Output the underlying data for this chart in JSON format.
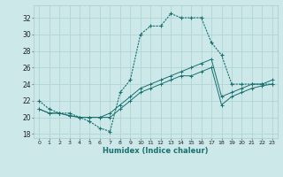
{
  "xlabel": "Humidex (Indice chaleur)",
  "background_color": "#cce8e8",
  "grid_color": "#b0d4d4",
  "line_color": "#1a7070",
  "xlim": [
    -0.5,
    23.5
  ],
  "ylim": [
    17.5,
    33.5
  ],
  "xticks": [
    0,
    1,
    2,
    3,
    4,
    5,
    6,
    7,
    8,
    9,
    10,
    11,
    12,
    13,
    14,
    15,
    16,
    17,
    18,
    19,
    20,
    21,
    22,
    23
  ],
  "yticks": [
    18,
    20,
    22,
    24,
    26,
    28,
    30,
    32
  ],
  "series1_x": [
    0,
    1,
    2,
    3,
    4,
    5,
    6,
    7,
    8,
    9,
    10,
    11,
    12,
    13,
    14,
    15,
    16,
    17,
    18,
    19,
    20,
    21,
    22,
    23
  ],
  "series1_y": [
    22,
    21,
    20.5,
    20.5,
    20,
    19.5,
    18.7,
    18.3,
    23,
    24.5,
    30,
    31,
    31,
    32.5,
    32,
    32,
    32,
    29,
    27.5,
    24,
    24,
    24,
    24,
    24
  ],
  "series2_x": [
    0,
    1,
    2,
    3,
    4,
    5,
    6,
    7,
    8,
    9,
    10,
    11,
    12,
    13,
    14,
    15,
    16,
    17,
    18,
    19,
    20,
    21,
    22,
    23
  ],
  "series2_y": [
    21,
    20.5,
    20.5,
    20.2,
    20,
    20,
    20,
    20.5,
    21.5,
    22.5,
    23.5,
    24,
    24.5,
    25,
    25.5,
    26,
    26.5,
    27,
    22.5,
    23,
    23.5,
    24,
    24,
    24.5
  ],
  "series3_x": [
    0,
    1,
    2,
    3,
    4,
    5,
    6,
    7,
    8,
    9,
    10,
    11,
    12,
    13,
    14,
    15,
    16,
    17,
    18,
    19,
    20,
    21,
    22,
    23
  ],
  "series3_y": [
    21,
    20.5,
    20.5,
    20.2,
    20,
    20,
    20,
    20,
    21,
    22,
    23,
    23.5,
    24,
    24.5,
    25,
    25,
    25.5,
    26,
    21.5,
    22.5,
    23,
    23.5,
    23.8,
    24
  ]
}
